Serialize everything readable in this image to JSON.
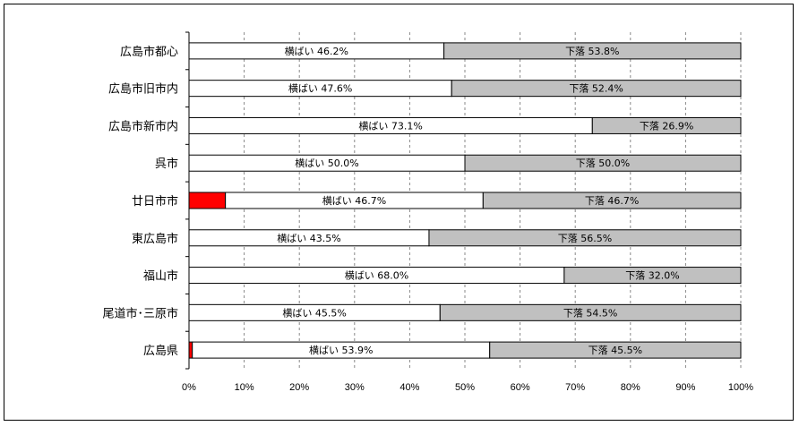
{
  "chart_data": {
    "type": "bar",
    "orientation": "horizontal",
    "stacked": "100%",
    "categories": [
      "広島市都心",
      "広島市旧市内",
      "広島市新市内",
      "呉市",
      "廿日市市",
      "東広島市",
      "福山市",
      "尾道市･三原市",
      "広島県"
    ],
    "series": [
      {
        "values": [
          0,
          0,
          0,
          0,
          6.6,
          0,
          0,
          0,
          0.6
        ],
        "color": "#ff0000"
      },
      {
        "name": "横ばい",
        "values": [
          46.2,
          47.6,
          73.1,
          50.0,
          46.7,
          43.5,
          68.0,
          45.5,
          53.9
        ],
        "color": "#ffffff"
      },
      {
        "name": "下落",
        "values": [
          53.8,
          52.4,
          26.9,
          50.0,
          46.7,
          56.5,
          32.0,
          54.5,
          45.5
        ],
        "color": "#c0c0c0"
      }
    ],
    "data_labels": [
      [
        "横ばい 46.2%",
        "下落 53.8%"
      ],
      [
        "横ばい 47.6%",
        "下落 52.4%"
      ],
      [
        "横ばい 73.1%",
        "下落 26.9%"
      ],
      [
        "横ばい 50.0%",
        "下落 50.0%"
      ],
      [
        "横ばい 46.7%",
        "下落 46.7%"
      ],
      [
        "横ばい 43.5%",
        "下落 56.5%"
      ],
      [
        "横ばい 68.0%",
        "下落 32.0%"
      ],
      [
        "横ばい 45.5%",
        "下落 54.5%"
      ],
      [
        "横ばい 53.9%",
        "下落 45.5%"
      ]
    ],
    "xlim": [
      0,
      100
    ],
    "x_ticks": [
      "0%",
      "10%",
      "20%",
      "30%",
      "40%",
      "50%",
      "60%",
      "70%",
      "80%",
      "90%",
      "100%"
    ],
    "grid": "vertical-dashed",
    "legend": "none",
    "title": "",
    "xlabel": "",
    "ylabel": ""
  }
}
